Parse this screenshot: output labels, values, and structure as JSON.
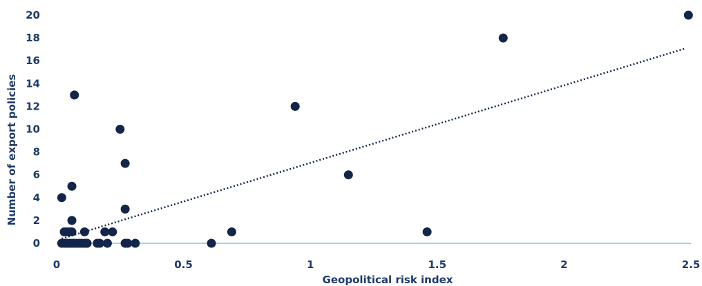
{
  "chart_data": {
    "type": "scatter",
    "xlabel": "Geopolitical risk index",
    "ylabel": "Number of export policies",
    "xlim": [
      0,
      2.5
    ],
    "ylim": [
      0,
      20
    ],
    "x_ticks": [
      "0",
      "0.5",
      "1",
      "1.5",
      "2",
      "2.5"
    ],
    "y_ticks": [
      "0",
      "2",
      "4",
      "6",
      "8",
      "10",
      "12",
      "14",
      "16",
      "18",
      "20"
    ],
    "grid": false,
    "trendline": {
      "style": "dotted",
      "from": [
        0.02,
        0.4
      ],
      "to": [
        2.48,
        17.1
      ]
    },
    "points": [
      {
        "x": 0.02,
        "y": 0
      },
      {
        "x": 0.03,
        "y": 0
      },
      {
        "x": 0.04,
        "y": 0
      },
      {
        "x": 0.05,
        "y": 0
      },
      {
        "x": 0.06,
        "y": 0
      },
      {
        "x": 0.07,
        "y": 0
      },
      {
        "x": 0.08,
        "y": 0
      },
      {
        "x": 0.09,
        "y": 0
      },
      {
        "x": 0.1,
        "y": 0
      },
      {
        "x": 0.11,
        "y": 0
      },
      {
        "x": 0.12,
        "y": 0
      },
      {
        "x": 0.16,
        "y": 0
      },
      {
        "x": 0.17,
        "y": 0
      },
      {
        "x": 0.2,
        "y": 0
      },
      {
        "x": 0.27,
        "y": 0
      },
      {
        "x": 0.28,
        "y": 0
      },
      {
        "x": 0.31,
        "y": 0
      },
      {
        "x": 0.61,
        "y": 0
      },
      {
        "x": 0.03,
        "y": 1
      },
      {
        "x": 0.04,
        "y": 1
      },
      {
        "x": 0.05,
        "y": 1
      },
      {
        "x": 0.06,
        "y": 1
      },
      {
        "x": 0.11,
        "y": 1
      },
      {
        "x": 0.19,
        "y": 1
      },
      {
        "x": 0.22,
        "y": 1
      },
      {
        "x": 0.69,
        "y": 1
      },
      {
        "x": 1.46,
        "y": 1
      },
      {
        "x": 0.06,
        "y": 2
      },
      {
        "x": 0.27,
        "y": 3
      },
      {
        "x": 0.02,
        "y": 4
      },
      {
        "x": 0.06,
        "y": 5
      },
      {
        "x": 1.15,
        "y": 6
      },
      {
        "x": 0.27,
        "y": 7
      },
      {
        "x": 0.25,
        "y": 10
      },
      {
        "x": 0.94,
        "y": 12
      },
      {
        "x": 0.07,
        "y": 13
      },
      {
        "x": 1.76,
        "y": 18
      },
      {
        "x": 2.49,
        "y": 20
      }
    ]
  }
}
